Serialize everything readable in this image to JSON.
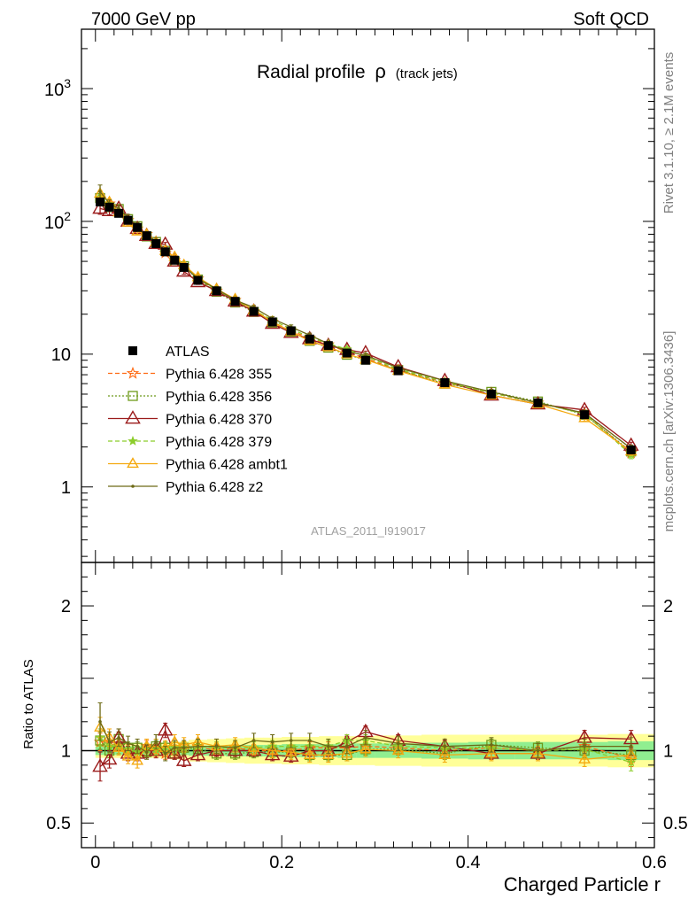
{
  "header": {
    "energy_label": "7000 GeV pp",
    "process_label": "Soft QCD",
    "title_main": "Radial profile",
    "title_symbol": "ρ",
    "title_sub": "(track jets)",
    "rivet_label": "Rivet 3.1.10, ≥ 2.1M events",
    "source_label": "mcplots.cern.ch [arXiv:1306.3436]",
    "analysis_label": "ATLAS_2011_I919017"
  },
  "colors": {
    "data": "#000000",
    "p355": "#ff6a13",
    "p356": "#6e9a1a",
    "p370": "#9b1b1b",
    "p379": "#8ccd2b",
    "ambt1": "#f4a910",
    "z2": "#6d6a16",
    "band_stat": "#90ee90",
    "band_total": "#ffff99"
  },
  "chart_data": [
    {
      "type": "scatter",
      "panel": "main",
      "title": "Radial profile ρ (track jets)",
      "xlabel": "",
      "ylabel": "",
      "ylog": true,
      "xlim": [
        -0.015,
        0.6
      ],
      "ylim": [
        0.27,
        2800
      ],
      "yticks": [
        1,
        10,
        100,
        1000
      ],
      "ytick_labels": [
        "1",
        "10",
        "10^2",
        "10^3"
      ],
      "legend_position": "center-left",
      "x": [
        0.005,
        0.015,
        0.025,
        0.035,
        0.045,
        0.055,
        0.065,
        0.075,
        0.085,
        0.095,
        0.11,
        0.13,
        0.15,
        0.17,
        0.19,
        0.21,
        0.23,
        0.25,
        0.27,
        0.29,
        0.325,
        0.375,
        0.425,
        0.475,
        0.525,
        0.575
      ],
      "series": [
        {
          "name": "ATLAS",
          "style": "data",
          "values": [
            140,
            128,
            115,
            102,
            90,
            78,
            68,
            59,
            51,
            45,
            36,
            30,
            25,
            21,
            17.5,
            15,
            13,
            11.6,
            10.2,
            9.0,
            7.5,
            6.1,
            5.0,
            4.3,
            3.5,
            1.9
          ],
          "errors": [
            6,
            5,
            4,
            3.5,
            3,
            2.5,
            2.2,
            2,
            1.8,
            1.5,
            1.2,
            1,
            0.9,
            0.8,
            0.7,
            0.6,
            0.5,
            0.45,
            0.4,
            0.35,
            0.3,
            0.25,
            0.22,
            0.2,
            0.18,
            0.12
          ]
        },
        {
          "name": "Pythia 6.428 355",
          "style": "p355",
          "values": [
            148,
            136,
            118,
            102,
            88,
            80,
            68,
            58,
            51,
            46,
            37,
            30,
            25.5,
            21,
            17.5,
            15,
            13.2,
            11.8,
            10.4,
            9.3,
            7.6,
            6.1,
            5.1,
            4.3,
            3.6,
            1.8
          ],
          "errors": [
            8,
            7,
            6,
            5,
            4,
            3.5,
            3,
            2.5,
            2.2,
            2,
            1.5,
            1.2,
            1,
            0.8,
            0.7,
            0.6,
            0.5,
            0.45,
            0.4,
            0.35,
            0.3,
            0.25,
            0.22,
            0.2,
            0.18,
            0.12
          ]
        },
        {
          "name": "Pythia 6.428 356",
          "style": "p356",
          "values": [
            150,
            128,
            124,
            104,
            92,
            77,
            70,
            60,
            50,
            46,
            36.5,
            29.5,
            24.5,
            20.8,
            17.3,
            14.8,
            12.6,
            11.2,
            9.9,
            9.1,
            7.6,
            6.0,
            5.2,
            4.4,
            3.5,
            1.85
          ],
          "errors": [
            8,
            7,
            6,
            5,
            4,
            3.5,
            3,
            2.5,
            2.2,
            2,
            1.5,
            1.2,
            1,
            0.8,
            0.7,
            0.6,
            0.5,
            0.45,
            0.4,
            0.35,
            0.3,
            0.25,
            0.22,
            0.2,
            0.18,
            0.12
          ]
        },
        {
          "name": "Pythia 6.428 370",
          "style": "p370",
          "values": [
            125,
            120,
            125,
            100,
            88,
            78,
            68,
            67,
            50,
            42,
            35,
            30,
            25,
            21,
            17,
            14.5,
            13,
            11.6,
            10.8,
            10.2,
            8.0,
            6.3,
            4.9,
            4.2,
            3.8,
            2.05
          ],
          "errors": [
            12,
            8,
            6,
            5,
            4,
            3.5,
            3,
            2.5,
            2.2,
            2,
            1.5,
            1.2,
            1,
            0.8,
            0.7,
            0.6,
            0.5,
            0.45,
            0.4,
            0.35,
            0.3,
            0.25,
            0.22,
            0.2,
            0.18,
            0.12
          ]
        },
        {
          "name": "Pythia 6.428 379",
          "style": "p379",
          "values": [
            152,
            132,
            118,
            103,
            89,
            79,
            69,
            60,
            52,
            46,
            37,
            30.5,
            25.5,
            21.5,
            18,
            15.5,
            13.4,
            12,
            10.9,
            9.6,
            7.7,
            6.2,
            5.1,
            4.3,
            3.55,
            1.75
          ],
          "errors": [
            8,
            7,
            6,
            5,
            4,
            3.5,
            3,
            2.5,
            2.2,
            2,
            1.5,
            1.2,
            1,
            0.8,
            0.7,
            0.6,
            0.5,
            0.45,
            0.4,
            0.35,
            0.3,
            0.25,
            0.22,
            0.2,
            0.18,
            0.12
          ]
        },
        {
          "name": "Pythia 6.428 ambt1",
          "style": "ambt1",
          "values": [
            162,
            140,
            117,
            98,
            84,
            80,
            70,
            60,
            54,
            47,
            38,
            31,
            26,
            21.5,
            17.5,
            14.8,
            12.6,
            11.3,
            10,
            9.1,
            7.5,
            5.9,
            4.9,
            4.2,
            3.3,
            1.85
          ],
          "errors": [
            9,
            7,
            6,
            5,
            4,
            3.5,
            3,
            2.5,
            2.2,
            2,
            1.5,
            1.2,
            1,
            0.8,
            0.7,
            0.6,
            0.5,
            0.45,
            0.4,
            0.35,
            0.3,
            0.25,
            0.22,
            0.2,
            0.18,
            0.12
          ]
        },
        {
          "name": "Pythia 6.428 z2",
          "style": "z2",
          "values": [
            168,
            136,
            125,
            107,
            93,
            77,
            72,
            58,
            52,
            46,
            37,
            31,
            25.5,
            22.5,
            18.5,
            16,
            13.9,
            12,
            10.5,
            9.8,
            7.9,
            6.3,
            5.2,
            4.3,
            3.6,
            1.95
          ],
          "errors": [
            20,
            9,
            8,
            6,
            5,
            4,
            3.5,
            3,
            2.5,
            2,
            1.5,
            1.2,
            1,
            0.8,
            0.7,
            0.6,
            0.5,
            0.45,
            0.4,
            0.35,
            0.3,
            0.25,
            0.22,
            0.2,
            0.18,
            0.12
          ]
        }
      ]
    },
    {
      "type": "scatter",
      "panel": "ratio",
      "xlabel": "Charged Particle r",
      "ylabel": "Ratio to ATLAS",
      "xlim": [
        -0.015,
        0.6
      ],
      "ylim": [
        0.33,
        2.3
      ],
      "xticks": [
        0,
        0.2,
        0.4,
        0.6
      ],
      "xtick_labels": [
        "0",
        "0.2",
        "0.4",
        "0.6"
      ],
      "yticks": [
        0.5,
        1,
        2
      ],
      "ytick_labels": [
        "0.5",
        "1",
        "2"
      ],
      "x": [
        0.005,
        0.015,
        0.025,
        0.035,
        0.045,
        0.055,
        0.065,
        0.075,
        0.085,
        0.095,
        0.11,
        0.13,
        0.15,
        0.17,
        0.19,
        0.21,
        0.23,
        0.25,
        0.27,
        0.29,
        0.325,
        0.375,
        0.425,
        0.475,
        0.525,
        0.575
      ],
      "bands": {
        "x_edges": [
          0.0,
          0.01,
          0.02,
          0.03,
          0.04,
          0.05,
          0.06,
          0.07,
          0.08,
          0.09,
          0.1,
          0.12,
          0.14,
          0.16,
          0.18,
          0.2,
          0.22,
          0.24,
          0.26,
          0.28,
          0.3,
          0.35,
          0.4,
          0.45,
          0.5,
          0.55,
          0.6
        ],
        "stat_half": [
          0.03,
          0.03,
          0.03,
          0.03,
          0.03,
          0.03,
          0.03,
          0.03,
          0.03,
          0.03,
          0.035,
          0.035,
          0.04,
          0.04,
          0.04,
          0.045,
          0.045,
          0.045,
          0.05,
          0.05,
          0.05,
          0.055,
          0.06,
          0.06,
          0.06,
          0.065
        ],
        "total_half": [
          0.05,
          0.05,
          0.05,
          0.05,
          0.05,
          0.05,
          0.05,
          0.055,
          0.06,
          0.065,
          0.075,
          0.08,
          0.085,
          0.09,
          0.09,
          0.095,
          0.095,
          0.1,
          0.1,
          0.1,
          0.105,
          0.11,
          0.11,
          0.11,
          0.11,
          0.115
        ]
      },
      "series": [
        {
          "name": "Pythia 6.428 355",
          "style": "p355",
          "values": [
            1.06,
            1.06,
            1.03,
            1.0,
            0.98,
            1.03,
            1.0,
            0.98,
            1.0,
            1.02,
            1.03,
            1.0,
            1.02,
            1.0,
            1.0,
            1.0,
            1.02,
            1.02,
            1.02,
            1.03,
            1.02,
            1.0,
            1.02,
            1.0,
            1.03,
            0.95
          ],
          "errors": [
            0.06,
            0.05,
            0.05,
            0.04,
            0.04,
            0.04,
            0.04,
            0.04,
            0.04,
            0.04,
            0.04,
            0.04,
            0.04,
            0.04,
            0.04,
            0.04,
            0.04,
            0.04,
            0.04,
            0.04,
            0.04,
            0.04,
            0.04,
            0.04,
            0.05,
            0.06
          ]
        },
        {
          "name": "Pythia 6.428 356",
          "style": "p356",
          "values": [
            1.07,
            1.0,
            1.08,
            1.02,
            1.02,
            0.99,
            1.03,
            1.02,
            0.98,
            1.02,
            1.01,
            0.98,
            0.98,
            0.99,
            0.99,
            0.99,
            0.97,
            0.97,
            0.97,
            1.01,
            1.01,
            0.98,
            1.04,
            1.02,
            1.0,
            0.97
          ],
          "errors": [
            0.06,
            0.05,
            0.05,
            0.04,
            0.04,
            0.04,
            0.04,
            0.04,
            0.04,
            0.04,
            0.04,
            0.04,
            0.04,
            0.04,
            0.04,
            0.04,
            0.04,
            0.04,
            0.04,
            0.04,
            0.04,
            0.04,
            0.04,
            0.04,
            0.05,
            0.06
          ]
        },
        {
          "name": "Pythia 6.428 370",
          "style": "p370",
          "values": [
            0.89,
            0.94,
            1.09,
            0.98,
            0.98,
            1.0,
            1.0,
            1.14,
            0.98,
            0.93,
            0.97,
            1.0,
            1.0,
            1.0,
            0.97,
            0.96,
            1.0,
            1.0,
            1.06,
            1.13,
            1.07,
            1.03,
            0.98,
            0.98,
            1.09,
            1.08
          ],
          "errors": [
            0.1,
            0.06,
            0.06,
            0.05,
            0.05,
            0.05,
            0.05,
            0.05,
            0.04,
            0.04,
            0.04,
            0.04,
            0.04,
            0.04,
            0.04,
            0.04,
            0.04,
            0.04,
            0.04,
            0.04,
            0.04,
            0.04,
            0.04,
            0.04,
            0.05,
            0.06
          ]
        },
        {
          "name": "Pythia 6.428 379",
          "style": "p379",
          "values": [
            1.09,
            1.03,
            1.03,
            1.01,
            0.99,
            1.01,
            1.01,
            1.02,
            1.02,
            1.02,
            1.03,
            1.02,
            1.02,
            1.02,
            1.03,
            1.03,
            1.03,
            1.03,
            1.07,
            1.07,
            1.03,
            1.02,
            1.02,
            1.0,
            1.01,
            0.92
          ],
          "errors": [
            0.06,
            0.05,
            0.05,
            0.04,
            0.04,
            0.04,
            0.04,
            0.04,
            0.04,
            0.04,
            0.04,
            0.04,
            0.04,
            0.04,
            0.04,
            0.04,
            0.04,
            0.04,
            0.04,
            0.04,
            0.04,
            0.04,
            0.04,
            0.04,
            0.05,
            0.06
          ]
        },
        {
          "name": "Pythia 6.428 ambt1",
          "style": "ambt1",
          "values": [
            1.16,
            1.09,
            1.02,
            0.96,
            0.93,
            1.03,
            1.03,
            1.02,
            1.06,
            1.04,
            1.06,
            1.03,
            1.04,
            1.02,
            1.0,
            0.99,
            0.97,
            0.97,
            0.98,
            1.01,
            1.0,
            0.97,
            0.98,
            0.98,
            0.94,
            0.97
          ],
          "errors": [
            0.07,
            0.06,
            0.05,
            0.05,
            0.05,
            0.05,
            0.05,
            0.05,
            0.05,
            0.05,
            0.05,
            0.05,
            0.05,
            0.05,
            0.05,
            0.05,
            0.05,
            0.05,
            0.05,
            0.05,
            0.05,
            0.05,
            0.05,
            0.05,
            0.05,
            0.06
          ]
        },
        {
          "name": "Pythia 6.428 z2",
          "style": "z2",
          "values": [
            1.2,
            1.06,
            1.09,
            1.05,
            1.03,
            0.99,
            1.06,
            0.98,
            1.02,
            1.02,
            1.03,
            1.03,
            1.02,
            1.07,
            1.06,
            1.07,
            1.07,
            1.03,
            1.03,
            1.09,
            1.05,
            1.03,
            1.04,
            1.0,
            1.03,
            1.03
          ],
          "errors": [
            0.13,
            0.07,
            0.06,
            0.05,
            0.05,
            0.05,
            0.05,
            0.05,
            0.05,
            0.05,
            0.05,
            0.05,
            0.05,
            0.05,
            0.05,
            0.05,
            0.05,
            0.05,
            0.05,
            0.05,
            0.05,
            0.05,
            0.05,
            0.05,
            0.05,
            0.06
          ]
        }
      ]
    }
  ]
}
